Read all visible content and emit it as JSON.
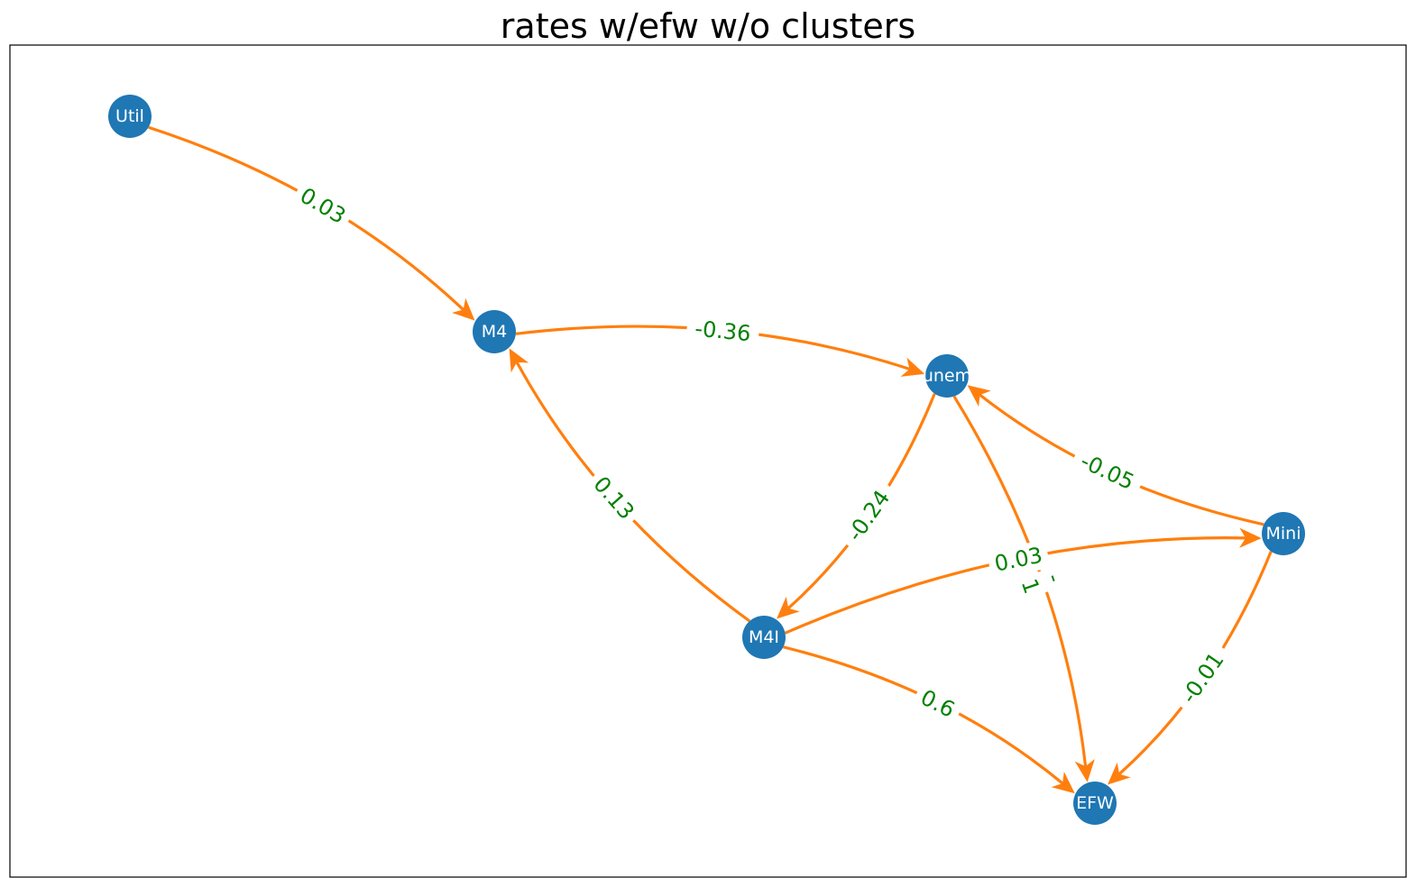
{
  "title": "rates w/efw w/o clusters",
  "colors": {
    "node": "#1f77b4",
    "edge": "#ff7f0e",
    "label": "#008000",
    "node_text": "#ffffff"
  },
  "nodes": [
    {
      "id": "Util",
      "label": "Util"
    },
    {
      "id": "M4",
      "label": "M4"
    },
    {
      "id": "unem",
      "label": "unem"
    },
    {
      "id": "Mini",
      "label": "Mini"
    },
    {
      "id": "M4I",
      "label": "M4I"
    },
    {
      "id": "EFW",
      "label": "EFW"
    }
  ],
  "edges": [
    {
      "from": "Util",
      "to": "M4",
      "label": "0.03"
    },
    {
      "from": "M4",
      "to": "unem",
      "label": "-0.36"
    },
    {
      "from": "M4I",
      "to": "M4",
      "label": "0.13"
    },
    {
      "from": "unem",
      "to": "M4I",
      "label": "-0.24"
    },
    {
      "from": "Mini",
      "to": "unem",
      "label": "-0.05"
    },
    {
      "from": "unem",
      "to": "EFW",
      "label": "-\n1"
    },
    {
      "from": "M4I",
      "to": "Mini",
      "label": "0.03"
    },
    {
      "from": "M4I",
      "to": "EFW",
      "label": "0.6"
    },
    {
      "from": "Mini",
      "to": "EFW",
      "label": "-0.01"
    }
  ]
}
